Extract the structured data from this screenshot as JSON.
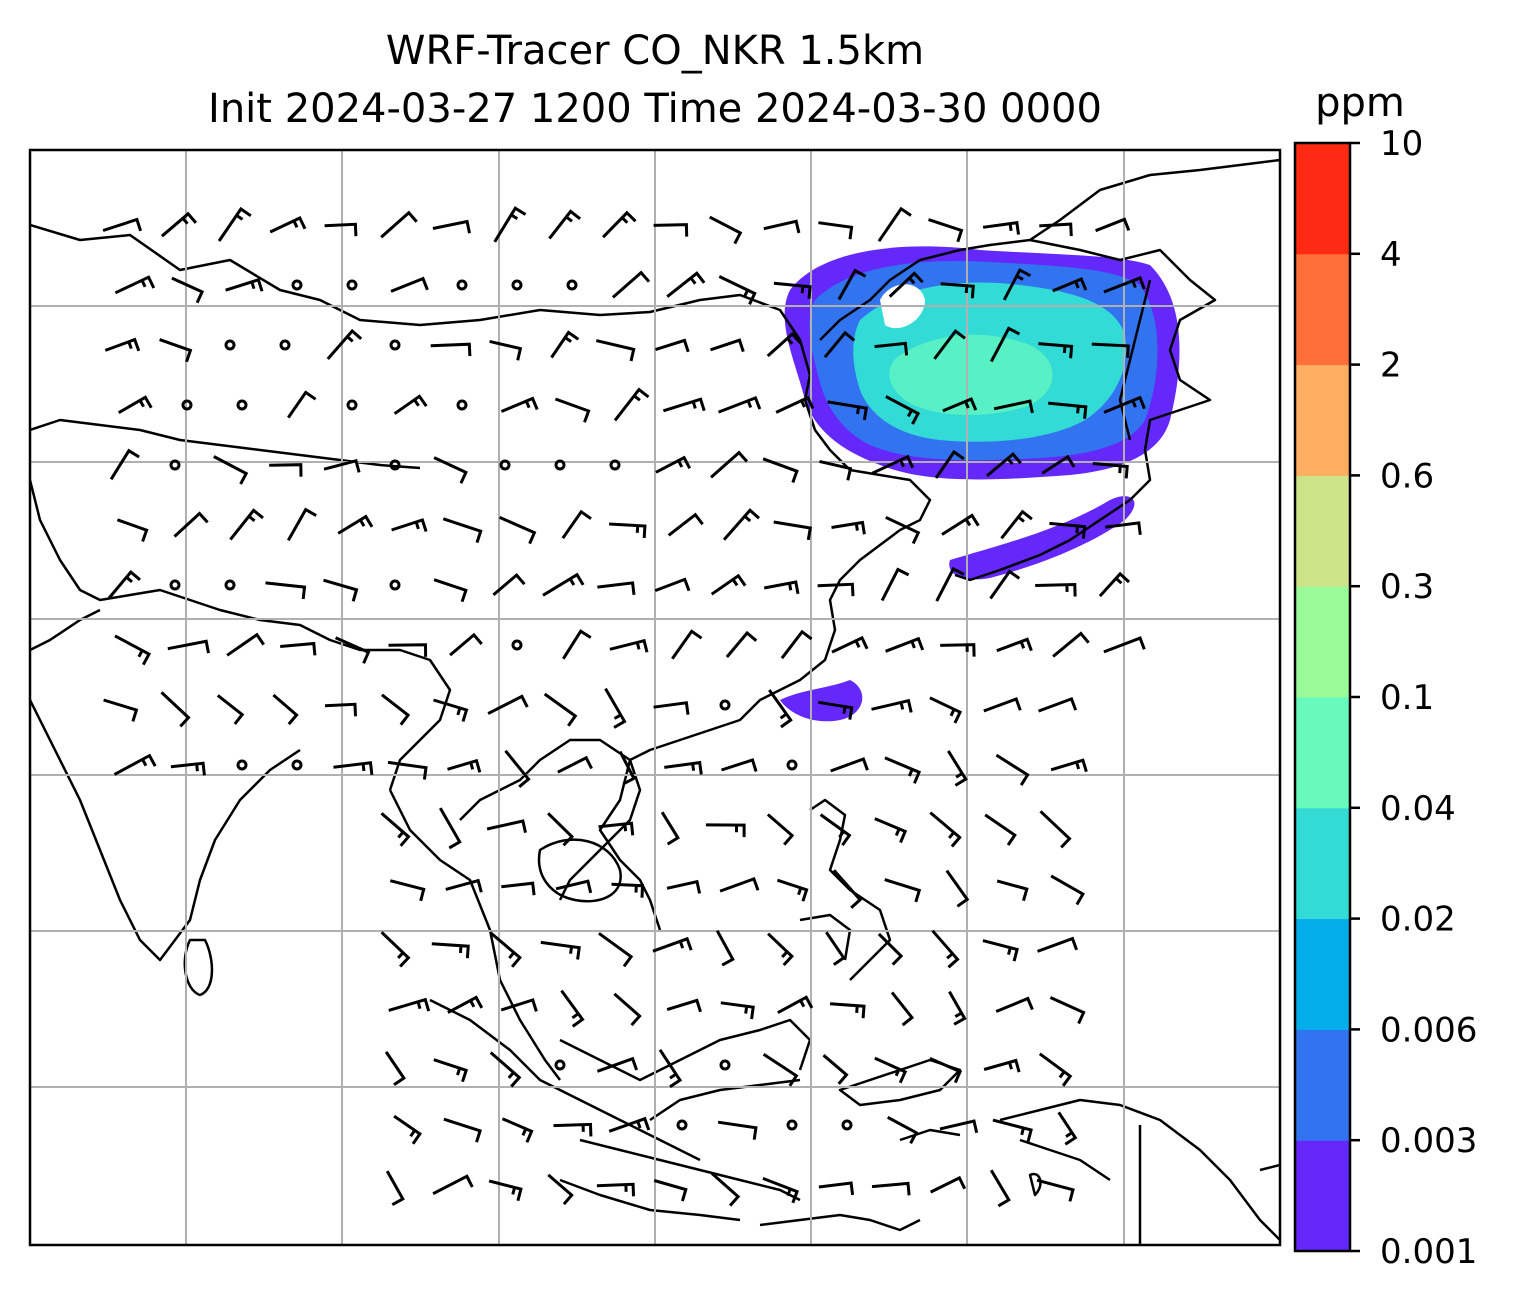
{
  "title": {
    "line1": "WRF-Tracer CO_NKR 1.5km",
    "line2": "Init 2024-03-27 1200 Time 2024-03-30 0000"
  },
  "colorbar": {
    "unit": "ppm",
    "levels": [
      "0.001",
      "0.003",
      "0.006",
      "0.02",
      "0.04",
      "0.1",
      "0.3",
      "0.6",
      "2",
      "4",
      "10"
    ],
    "colors": [
      "#6429fa",
      "#3274f0",
      "#04aeeb",
      "#32dbd6",
      "#68f9bd",
      "#98fb98",
      "#cde387",
      "#fdae61",
      "#ff6f3a",
      "#ff2a13"
    ]
  },
  "map": {
    "gridlines": true,
    "features": [
      "coastlines",
      "country-borders",
      "wind-barbs",
      "tracer-shading"
    ],
    "grid_color": "#b0b0b0"
  }
}
